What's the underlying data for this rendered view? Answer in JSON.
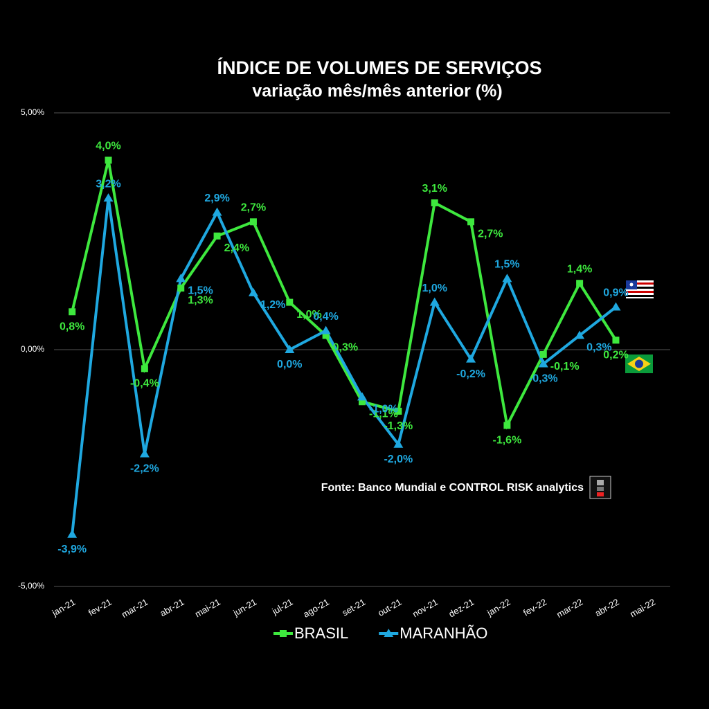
{
  "chart_data": {
    "type": "line",
    "title": "ÍNDICE DE VOLUMES DE SERVIÇOS",
    "subtitle": "variação mês/mês anterior (%)",
    "source": "Fonte: Banco Mundial e CONTROL RISK analytics",
    "categories": [
      "jan-21",
      "fev-21",
      "mar-21",
      "abr-21",
      "mai-21",
      "jun-21",
      "jul-21",
      "ago-21",
      "set-21",
      "out-21",
      "nov-21",
      "dez-21",
      "jan-22",
      "fev-22",
      "mar-22",
      "abr-22",
      "mai-22"
    ],
    "series": [
      {
        "name": "BRASIL",
        "color": "#3ee83e",
        "marker": "square",
        "values": [
          0.8,
          4.0,
          -0.4,
          1.3,
          2.4,
          2.7,
          1.0,
          0.3,
          -1.1,
          -1.3,
          3.1,
          2.7,
          -1.6,
          -0.1,
          1.4,
          0.2,
          null
        ],
        "value_labels": [
          "0,8%",
          "4,0%",
          "-0,4%",
          "1,3%",
          "2,4%",
          "2,7%",
          "1,0%",
          "0,3%",
          "-1,1%",
          "-1,3%",
          "3,1%",
          "2,7%",
          "-1,6%",
          "-0,1%",
          "1,4%",
          "0,2%",
          null
        ]
      },
      {
        "name": "MARANHÃO",
        "color": "#1fa8e0",
        "marker": "triangle",
        "values": [
          -3.9,
          3.2,
          -2.2,
          1.5,
          2.9,
          1.2,
          0.0,
          0.4,
          -1.0,
          -2.0,
          1.0,
          -0.2,
          1.5,
          -0.3,
          0.3,
          0.9,
          null
        ],
        "value_labels": [
          "-3,9%",
          "3,2%",
          "-2,2%",
          "1,5%",
          "2,9%",
          "1,2%",
          "0,0%",
          "0,4%",
          "-1,0%",
          "-2,0%",
          "1,0%",
          "-0,2%",
          "1,5%",
          "-0,3%",
          "0,3%",
          "0,9%",
          null
        ]
      }
    ],
    "ylim": [
      -5,
      5
    ],
    "yticks": [
      {
        "value": -5,
        "label": "-5,00%"
      },
      {
        "value": 0,
        "label": "0,00%"
      },
      {
        "value": 5,
        "label": "5,00%"
      }
    ],
    "grid": true
  }
}
